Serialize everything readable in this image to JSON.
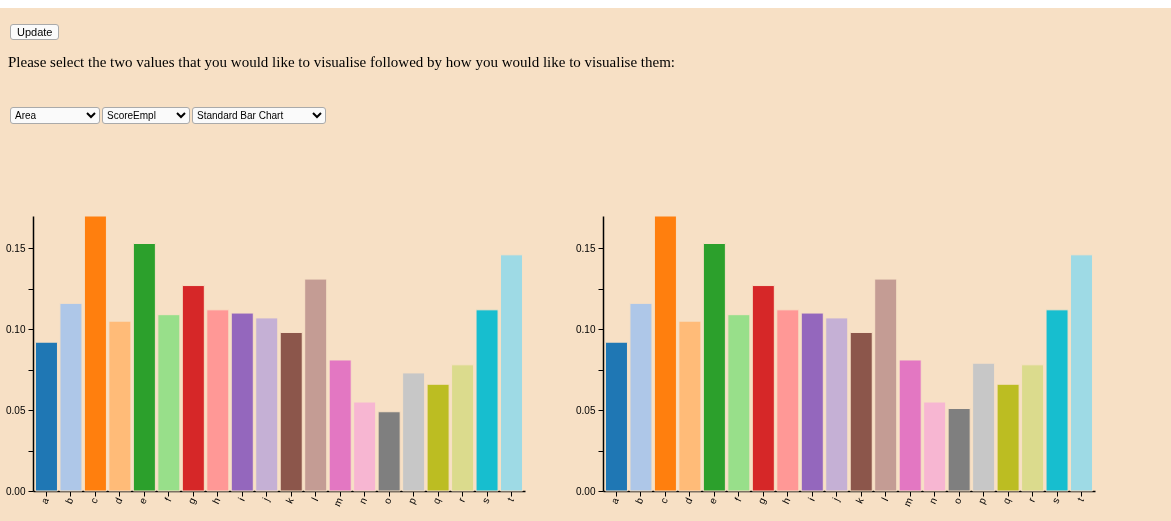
{
  "chart_data": [
    {
      "type": "other",
      "annotations": [
        "Update",
        "Please select the two values that you would like to visualise followed by how you would like to visualise them:",
        "Area",
        "ScoreEmpl",
        "Standard Bar Chart"
      ]
    },
    {
      "type": "bar",
      "categories": [
        "a",
        "b",
        "c",
        "d",
        "e",
        "f",
        "g",
        "h",
        "i",
        "j",
        "k",
        "l",
        "m",
        "n",
        "o",
        "p",
        "q",
        "r",
        "s",
        "t"
      ],
      "values": [
        0.092,
        0.116,
        0.17,
        0.105,
        0.153,
        0.109,
        0.127,
        0.112,
        0.11,
        0.107,
        0.098,
        0.131,
        0.081,
        0.055,
        0.049,
        0.073,
        0.066,
        0.078,
        0.112,
        0.146
      ],
      "colors": [
        "#1f77b4",
        "#aec7e8",
        "#ff7f0e",
        "#ffbb78",
        "#2ca02c",
        "#98df8a",
        "#d62728",
        "#ff9896",
        "#9467bd",
        "#c5b0d5",
        "#8c564b",
        "#c49c94",
        "#e377c2",
        "#f7b6d2",
        "#7f7f7f",
        "#c7c7c7",
        "#bcbd22",
        "#dbdb8d",
        "#17becf",
        "#9edae5"
      ],
      "ylim": [
        0,
        0.17
      ],
      "yticks": [
        {
          "value": 0,
          "label": "0.00"
        },
        {
          "value": 0.025,
          "label": null
        },
        {
          "value": 0.05,
          "label": "0.05"
        },
        {
          "value": 0.075,
          "label": null
        },
        {
          "value": 0.1,
          "label": "0.10"
        },
        {
          "value": 0.125,
          "label": null
        },
        {
          "value": 0.15,
          "label": "0.15"
        }
      ],
      "grid": false,
      "legend": false
    },
    {
      "type": "bar",
      "categories": [
        "a",
        "b",
        "c",
        "d",
        "e",
        "f",
        "g",
        "h",
        "i",
        "j",
        "k",
        "l",
        "m",
        "n",
        "o",
        "p",
        "q",
        "r",
        "s",
        "t"
      ],
      "values": [
        0.092,
        0.116,
        0.17,
        0.105,
        0.153,
        0.109,
        0.127,
        0.112,
        0.11,
        0.107,
        0.098,
        0.131,
        0.081,
        0.055,
        0.051,
        0.079,
        0.066,
        0.078,
        0.112,
        0.146
      ],
      "colors": [
        "#1f77b4",
        "#aec7e8",
        "#ff7f0e",
        "#ffbb78",
        "#2ca02c",
        "#98df8a",
        "#d62728",
        "#ff9896",
        "#9467bd",
        "#c5b0d5",
        "#8c564b",
        "#c49c94",
        "#e377c2",
        "#f7b6d2",
        "#7f7f7f",
        "#c7c7c7",
        "#bcbd22",
        "#dbdb8d",
        "#17becf",
        "#9edae5"
      ],
      "ylim": [
        0,
        0.17
      ],
      "yticks": [
        {
          "value": 0,
          "label": "0.00"
        },
        {
          "value": 0.025,
          "label": null
        },
        {
          "value": 0.05,
          "label": "0.05"
        },
        {
          "value": 0.075,
          "label": null
        },
        {
          "value": 0.1,
          "label": "0.10"
        },
        {
          "value": 0.125,
          "label": null
        },
        {
          "value": 0.15,
          "label": "0.15"
        }
      ],
      "grid": false,
      "legend": false
    }
  ]
}
